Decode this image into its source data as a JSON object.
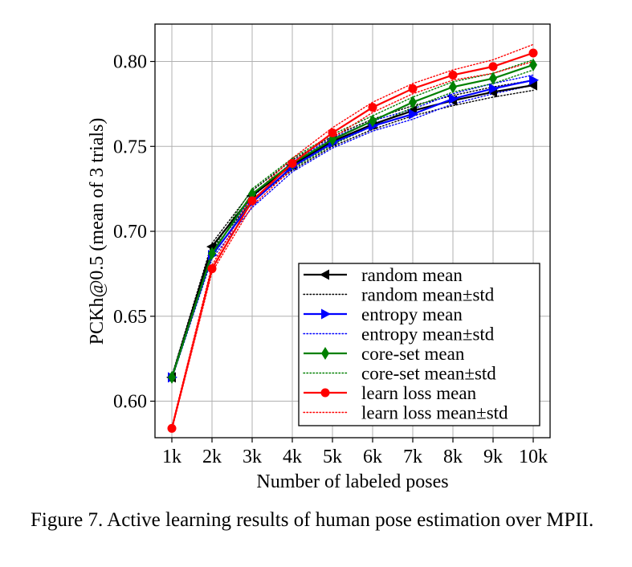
{
  "chart_data": {
    "type": "line",
    "title": "",
    "xlabel": "Number of labeled poses",
    "ylabel": "PCKh@0.5 (mean of 3 trials)",
    "categories": [
      "1k",
      "2k",
      "3k",
      "4k",
      "5k",
      "6k",
      "7k",
      "8k",
      "9k",
      "10k"
    ],
    "y_ticks": [
      "0.60",
      "0.65",
      "0.70",
      "0.75",
      "0.80"
    ],
    "ylim": [
      0.5785,
      0.822
    ],
    "grid": true,
    "legend_position": "lower-right",
    "series": [
      {
        "name": "random mean",
        "std_name": "random mean±std",
        "color": "#000000",
        "marker": "triangle-left",
        "values": [
          0.614,
          0.691,
          0.721,
          0.739,
          0.753,
          0.763,
          0.771,
          0.777,
          0.782,
          0.786
        ],
        "std_upper": [
          0.615,
          0.693,
          0.724,
          0.742,
          0.756,
          0.766,
          0.774,
          0.78,
          0.785,
          0.789
        ],
        "std_lower": [
          0.613,
          0.689,
          0.718,
          0.736,
          0.75,
          0.76,
          0.768,
          0.774,
          0.779,
          0.783
        ]
      },
      {
        "name": "entropy mean",
        "std_name": "entropy mean±std",
        "color": "#0000ff",
        "marker": "triangle-right",
        "values": [
          0.614,
          0.686,
          0.717,
          0.738,
          0.752,
          0.762,
          0.769,
          0.778,
          0.784,
          0.789
        ],
        "std_upper": [
          0.615,
          0.688,
          0.72,
          0.741,
          0.755,
          0.765,
          0.772,
          0.781,
          0.787,
          0.792
        ],
        "std_lower": [
          0.613,
          0.684,
          0.714,
          0.735,
          0.749,
          0.759,
          0.766,
          0.775,
          0.781,
          0.786
        ]
      },
      {
        "name": "core-set mean",
        "std_name": "core-set mean±std",
        "color": "#008000",
        "marker": "diamond",
        "values": [
          0.614,
          0.687,
          0.722,
          0.74,
          0.754,
          0.765,
          0.776,
          0.785,
          0.79,
          0.798
        ],
        "std_upper": [
          0.615,
          0.689,
          0.725,
          0.743,
          0.757,
          0.768,
          0.779,
          0.788,
          0.793,
          0.801
        ],
        "std_lower": [
          0.613,
          0.685,
          0.719,
          0.737,
          0.751,
          0.762,
          0.773,
          0.782,
          0.787,
          0.795
        ]
      },
      {
        "name": "learn loss mean",
        "std_name": "learn loss mean±std",
        "color": "#ff0000",
        "marker": "circle",
        "values": [
          0.584,
          0.678,
          0.718,
          0.74,
          0.758,
          0.773,
          0.784,
          0.792,
          0.797,
          0.805
        ],
        "std_upper": [
          0.585,
          0.68,
          0.721,
          0.743,
          0.761,
          0.776,
          0.787,
          0.795,
          0.801,
          0.81
        ],
        "std_lower": [
          0.583,
          0.676,
          0.715,
          0.737,
          0.755,
          0.77,
          0.781,
          0.789,
          0.793,
          0.8
        ]
      }
    ]
  },
  "caption": "Figure 7. Active learning results of human pose estimation over MPII."
}
